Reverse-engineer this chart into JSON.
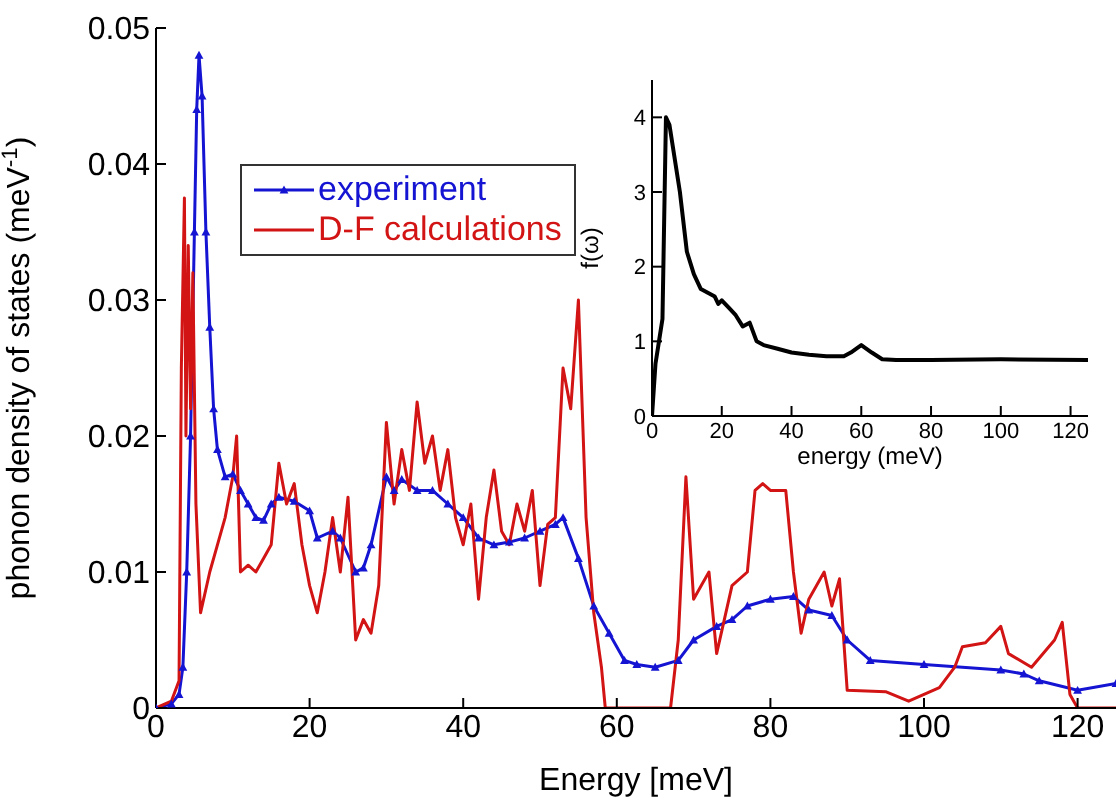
{
  "chart_data": [
    {
      "type": "line",
      "xlabel": "Energy [meV]",
      "ylabel": "phonon density of states (meV$^{-1}$)",
      "xlim": [
        0,
        125
      ],
      "xticks": [
        0,
        20,
        40,
        60,
        80,
        100,
        120
      ],
      "ylim": [
        0,
        0.05
      ],
      "yticks": [
        0,
        0.01,
        0.02,
        0.03,
        0.04,
        0.05
      ],
      "legend": "top left",
      "series": [
        {
          "name": "experiment",
          "color": "#1414d2",
          "marker": "triangle",
          "x": [
            0,
            2,
            3,
            3.5,
            4,
            4.5,
            5,
            5.3,
            5.6,
            6,
            6.5,
            7,
            7.5,
            8,
            9,
            10,
            11,
            12,
            13,
            14,
            15,
            16,
            18,
            20,
            21,
            23,
            24,
            26,
            27,
            28,
            30,
            31,
            32,
            34,
            36,
            38,
            40,
            42,
            44,
            46,
            48,
            50,
            52,
            53,
            55,
            57,
            59,
            61,
            62.6,
            65,
            68,
            70,
            73,
            75,
            77,
            80,
            83,
            85,
            88,
            90,
            93,
            100,
            110,
            113,
            115,
            120,
            125
          ],
          "values": [
            0,
            0.0003,
            0.001,
            0.003,
            0.01,
            0.02,
            0.035,
            0.044,
            0.048,
            0.045,
            0.035,
            0.028,
            0.022,
            0.019,
            0.017,
            0.0172,
            0.016,
            0.015,
            0.014,
            0.0138,
            0.015,
            0.0155,
            0.0152,
            0.0145,
            0.0125,
            0.013,
            0.0125,
            0.01,
            0.0103,
            0.012,
            0.017,
            0.016,
            0.0168,
            0.016,
            0.016,
            0.015,
            0.014,
            0.0125,
            0.012,
            0.0122,
            0.0125,
            0.013,
            0.0135,
            0.014,
            0.011,
            0.0075,
            0.0055,
            0.0035,
            0.0032,
            0.003,
            0.0035,
            0.005,
            0.006,
            0.0065,
            0.0075,
            0.008,
            0.0082,
            0.0072,
            0.0068,
            0.005,
            0.0035,
            0.0032,
            0.0028,
            0.0025,
            0.002,
            0.0013,
            0.0018
          ]
        },
        {
          "name": "D-F calculations",
          "color": "#d21414",
          "marker": "none",
          "x": [
            0,
            2,
            3,
            3.3,
            3.7,
            3.9,
            4.2,
            4.5,
            4.8,
            5.2,
            5.8,
            7,
            8,
            9,
            10,
            10.5,
            11,
            12,
            13,
            14,
            15,
            16,
            17,
            18,
            19,
            20,
            21,
            22,
            23,
            24,
            25,
            26,
            27,
            28,
            29,
            30,
            31,
            32,
            33,
            34,
            35,
            36,
            37,
            38,
            39,
            40,
            41,
            42,
            43,
            44,
            45,
            46,
            47,
            48,
            49,
            50,
            51,
            52,
            53,
            54,
            55,
            56,
            57,
            58,
            58.5,
            67,
            68,
            69,
            70,
            71,
            72,
            73,
            75,
            77,
            78,
            79,
            80,
            82,
            83,
            84,
            85,
            87,
            88,
            89,
            90,
            95,
            98,
            102,
            104,
            105,
            108,
            110,
            111,
            114,
            117,
            118,
            119,
            120,
            125
          ],
          "values": [
            0,
            0.0005,
            0.002,
            0.025,
            0.0375,
            0.02,
            0.034,
            0.022,
            0.032,
            0.015,
            0.007,
            0.01,
            0.012,
            0.014,
            0.017,
            0.02,
            0.01,
            0.0105,
            0.01,
            0.011,
            0.012,
            0.018,
            0.015,
            0.0165,
            0.012,
            0.009,
            0.007,
            0.01,
            0.014,
            0.01,
            0.0155,
            0.005,
            0.0065,
            0.0055,
            0.009,
            0.021,
            0.015,
            0.019,
            0.016,
            0.0225,
            0.018,
            0.02,
            0.016,
            0.019,
            0.014,
            0.012,
            0.015,
            0.008,
            0.014,
            0.0175,
            0.013,
            0.012,
            0.015,
            0.013,
            0.016,
            0.009,
            0.0135,
            0.014,
            0.025,
            0.022,
            0.03,
            0.014,
            0.007,
            0.003,
            0,
            0,
            0.005,
            0.017,
            0.008,
            0.009,
            0.01,
            0.004,
            0.009,
            0.01,
            0.016,
            0.0165,
            0.016,
            0.016,
            0.01,
            0.0055,
            0.008,
            0.01,
            0.0075,
            0.0095,
            0.0013,
            0.0012,
            0.0005,
            0.0015,
            0.003,
            0.0045,
            0.0048,
            0.006,
            0.004,
            0.003,
            0.005,
            0.0063,
            0.001,
            0,
            0
          ]
        }
      ]
    },
    {
      "type": "line",
      "xlabel": "energy (meV)",
      "ylabel": "f(ω)",
      "xlim": [
        0,
        125
      ],
      "xticks": [
        0,
        20,
        40,
        60,
        80,
        100,
        120
      ],
      "ylim": [
        0,
        4.5
      ],
      "yticks": [
        0,
        1,
        2,
        3,
        4
      ],
      "series": [
        {
          "color": "#000000",
          "x": [
            0,
            1,
            2,
            3,
            4,
            5,
            6,
            8,
            10,
            12,
            14,
            16,
            18,
            19,
            20,
            22,
            24,
            26,
            28,
            30,
            32,
            36,
            40,
            45,
            50,
            55,
            57,
            60,
            63,
            66,
            70,
            80,
            100,
            125
          ],
          "values": [
            0,
            0.7,
            1.0,
            1.3,
            4.0,
            3.9,
            3.6,
            3.0,
            2.2,
            1.9,
            1.7,
            1.65,
            1.6,
            1.5,
            1.55,
            1.45,
            1.35,
            1.2,
            1.25,
            1.0,
            0.95,
            0.9,
            0.85,
            0.82,
            0.8,
            0.8,
            0.85,
            0.95,
            0.85,
            0.76,
            0.75,
            0.75,
            0.76,
            0.75
          ]
        }
      ]
    }
  ]
}
